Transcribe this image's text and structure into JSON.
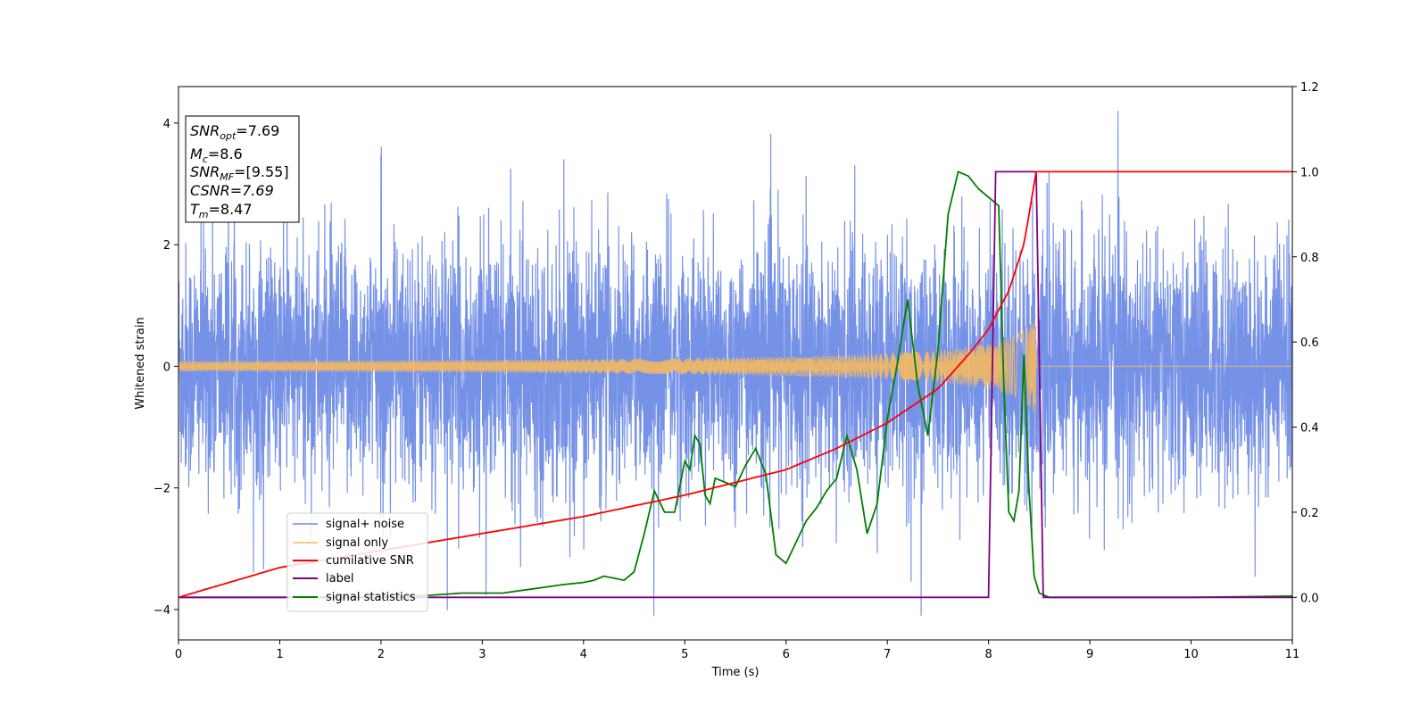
{
  "chart_data": {
    "type": "line",
    "xlabel": "Time (s)",
    "ylabel_left": "Whitened strain",
    "ylabel_right": "",
    "xlim": [
      0,
      11
    ],
    "ylim_left": [
      -4.5,
      4.6
    ],
    "ylim_right": [
      -0.1,
      1.2
    ],
    "x_ticks": [
      0,
      1,
      2,
      3,
      4,
      5,
      6,
      7,
      8,
      9,
      10,
      11
    ],
    "y_ticks_left": [
      -4,
      -2,
      0,
      2,
      4
    ],
    "y_ticks_right": [
      0.0,
      0.2,
      0.4,
      0.6,
      0.8,
      1.0,
      1.2
    ],
    "y_ticks_right_labels": [
      "0.0",
      "0.2",
      "0.4",
      "0.6",
      "0.8",
      "1.0",
      "1.2"
    ],
    "legend_position": "lower-left",
    "colors": {
      "signal_noise": "#6f8ce6",
      "signal_only": "#f5b961",
      "cumulative_snr": "#ff0000",
      "label": "#800080",
      "signal_statistics": "#008000"
    },
    "annotation": {
      "snr_opt": {
        "base": "SNR",
        "sub": "opt",
        "value": "=7.69"
      },
      "mc": {
        "base": "M",
        "sub": "c",
        "value": "=8.6"
      },
      "snr_mf": {
        "base": "SNR",
        "sub": "MF",
        "value": "=[9.55]"
      },
      "csnr": {
        "text": "CSNR=7.69"
      },
      "tm": {
        "base": "T",
        "sub": "m",
        "value": "=8.47"
      }
    },
    "series": [
      {
        "name": "signal+ noise",
        "axis": "left",
        "description_values": "noise band, amplitude ~±1.7 with spikes up to 4.2 / -4.1",
        "envelope": {
          "typical": 1.7,
          "max": 4.2,
          "min": -4.1
        }
      },
      {
        "name": "signal only",
        "axis": "left",
        "chirp": {
          "start_amp": 0.03,
          "end_time": 8.47,
          "end_amp": 0.8
        }
      },
      {
        "name": "cumilative SNR",
        "axis": "right",
        "x": [
          0,
          1,
          2,
          3,
          4,
          5,
          6,
          6.5,
          7,
          7.5,
          7.8,
          8.0,
          8.2,
          8.35,
          8.47,
          11
        ],
        "values": [
          0.0,
          0.07,
          0.11,
          0.15,
          0.19,
          0.24,
          0.3,
          0.35,
          0.41,
          0.49,
          0.57,
          0.63,
          0.72,
          0.83,
          1.0,
          1.0
        ]
      },
      {
        "name": "label",
        "axis": "right",
        "x": [
          0,
          8.0,
          8.07,
          8.47,
          8.54,
          11
        ],
        "values": [
          0.0,
          0.0,
          1.0,
          1.0,
          0.0,
          0.0
        ]
      },
      {
        "name": "signal statistics",
        "axis": "right",
        "x": [
          0,
          0.5,
          1,
          2,
          2.5,
          2.8,
          3.2,
          3.5,
          3.8,
          4.0,
          4.1,
          4.2,
          4.3,
          4.4,
          4.5,
          4.6,
          4.7,
          4.8,
          4.9,
          5.0,
          5.05,
          5.1,
          5.15,
          5.2,
          5.25,
          5.3,
          5.4,
          5.5,
          5.6,
          5.7,
          5.8,
          5.9,
          6.0,
          6.1,
          6.2,
          6.3,
          6.4,
          6.5,
          6.6,
          6.7,
          6.8,
          6.9,
          7.0,
          7.1,
          7.2,
          7.3,
          7.4,
          7.5,
          7.6,
          7.7,
          7.8,
          7.9,
          8.0,
          8.1,
          8.15,
          8.2,
          8.25,
          8.3,
          8.35,
          8.4,
          8.45,
          8.5,
          8.55,
          8.6,
          9,
          10,
          11
        ],
        "values": [
          0.0,
          0.0,
          0.0,
          0.0,
          0.005,
          0.01,
          0.01,
          0.02,
          0.03,
          0.035,
          0.04,
          0.05,
          0.045,
          0.04,
          0.06,
          0.15,
          0.25,
          0.2,
          0.2,
          0.32,
          0.3,
          0.38,
          0.36,
          0.24,
          0.22,
          0.28,
          0.27,
          0.26,
          0.31,
          0.35,
          0.29,
          0.1,
          0.08,
          0.13,
          0.18,
          0.21,
          0.25,
          0.28,
          0.38,
          0.3,
          0.15,
          0.22,
          0.42,
          0.55,
          0.7,
          0.5,
          0.38,
          0.58,
          0.9,
          1.0,
          0.99,
          0.96,
          0.94,
          0.92,
          0.5,
          0.2,
          0.18,
          0.25,
          0.57,
          0.25,
          0.05,
          0.01,
          0.005,
          0.0,
          0.0,
          0.0,
          0.003
        ]
      }
    ]
  }
}
